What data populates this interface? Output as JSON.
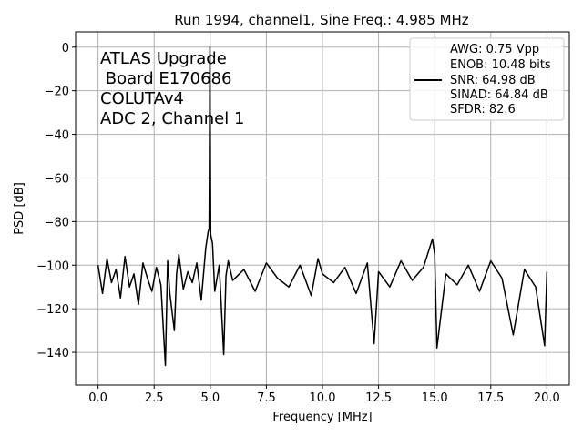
{
  "chart_data": {
    "type": "line",
    "title": "Run 1994, channel1, Sine Freq.: 4.985 MHz",
    "xlabel": "Frequency [MHz]",
    "ylabel": "PSD [dB]",
    "xlim": [
      -1.0,
      21.0
    ],
    "ylim": [
      -155,
      7
    ],
    "xticks": [
      0.0,
      2.5,
      5.0,
      7.5,
      10.0,
      12.5,
      15.0,
      17.5,
      20.0
    ],
    "xtick_labels": [
      "0.0",
      "2.5",
      "5.0",
      "7.5",
      "10.0",
      "12.5",
      "15.0",
      "17.5",
      "20.0"
    ],
    "yticks": [
      0,
      -20,
      -40,
      -60,
      -80,
      -100,
      -120,
      -140
    ],
    "ytick_labels": [
      "0",
      "−20",
      "−40",
      "−60",
      "−80",
      "−100",
      "−120",
      "−140"
    ],
    "grid": true,
    "legend_position": "top-right",
    "annotation_lines": [
      "ATLAS Upgrade",
      " Board E170686",
      "COLUTAv4",
      "ADC 2, Channel 1"
    ],
    "series": [
      {
        "legend_lines": [
          "AWG: 0.75 Vpp",
          "ENOB: 10.48 bits",
          "SNR: 64.98 dB",
          "SINAD: 64.84 dB",
          "SFDR: 82.6"
        ],
        "color": "#000000",
        "x": [
          0.0,
          0.2,
          0.4,
          0.6,
          0.8,
          1.0,
          1.2,
          1.4,
          1.6,
          1.8,
          2.0,
          2.2,
          2.4,
          2.6,
          2.8,
          3.0,
          3.1,
          3.2,
          3.4,
          3.5,
          3.6,
          3.8,
          4.0,
          4.2,
          4.4,
          4.6,
          4.8,
          4.9,
          4.95,
          4.985,
          5.02,
          5.1,
          5.2,
          5.4,
          5.6,
          5.7,
          5.8,
          6.0,
          6.5,
          7.0,
          7.5,
          8.0,
          8.5,
          9.0,
          9.5,
          9.8,
          10.0,
          10.5,
          11.0,
          11.5,
          12.0,
          12.3,
          12.5,
          13.0,
          13.5,
          14.0,
          14.5,
          14.9,
          15.0,
          15.1,
          15.5,
          16.0,
          16.5,
          17.0,
          17.5,
          18.0,
          18.5,
          19.0,
          19.5,
          19.9,
          20.0
        ],
        "y": [
          -100,
          -113,
          -97,
          -108,
          -102,
          -115,
          -96,
          -110,
          -104,
          -118,
          -99,
          -106,
          -112,
          -101,
          -109,
          -146,
          -98,
          -113,
          -130,
          -104,
          -95,
          -111,
          -103,
          -108,
          -99,
          -116,
          -92,
          -85,
          -83,
          0,
          -86,
          -90,
          -112,
          -100,
          -141,
          -105,
          -98,
          -107,
          -102,
          -112,
          -99,
          -106,
          -110,
          -100,
          -114,
          -97,
          -104,
          -108,
          -101,
          -113,
          -99,
          -136,
          -103,
          -110,
          -98,
          -107,
          -101,
          -88,
          -95,
          -138,
          -104,
          -109,
          -100,
          -112,
          -98,
          -106,
          -132,
          -102,
          -110,
          -137,
          -103
        ]
      }
    ]
  }
}
